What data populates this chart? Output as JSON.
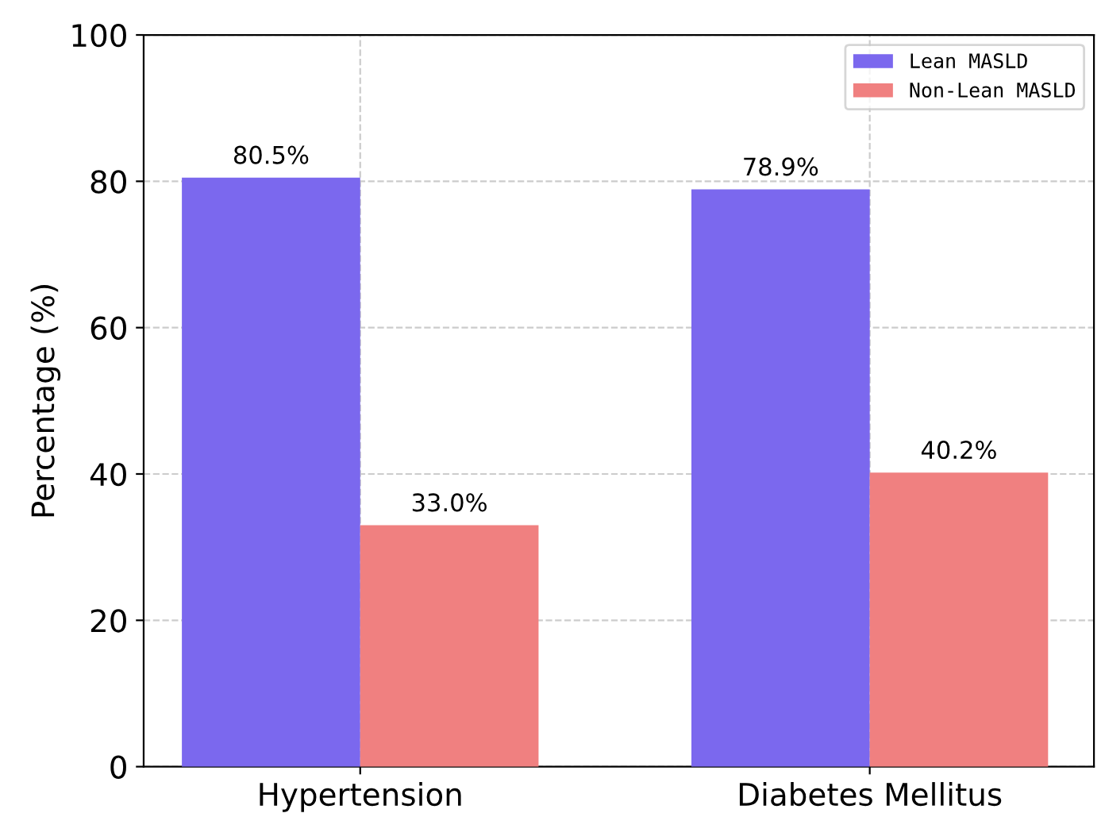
{
  "chart_data": {
    "type": "bar",
    "ylabel": "Percentage (%)",
    "categories": [
      "Hypertension",
      "Diabetes Mellitus"
    ],
    "series": [
      {
        "name": "Lean MASLD",
        "color": "#7b68ee",
        "values": [
          80.5,
          78.9
        ],
        "value_labels": [
          "80.5%",
          "78.9%"
        ]
      },
      {
        "name": "Non-Lean MASLD",
        "color": "#f08080",
        "values": [
          33.0,
          40.2
        ],
        "value_labels": [
          "33.0%",
          "40.2%"
        ]
      }
    ],
    "ylim": [
      0,
      100
    ],
    "yticks": [
      0,
      20,
      40,
      60,
      80,
      100
    ],
    "grid": true,
    "legend": "top right"
  }
}
